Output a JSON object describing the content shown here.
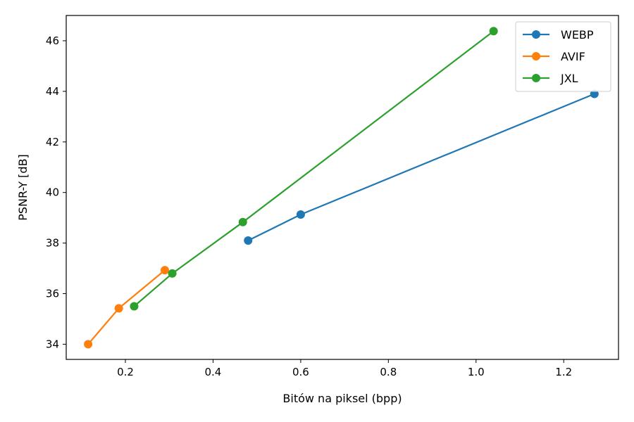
{
  "chart_data": {
    "type": "line",
    "title": "",
    "xlabel": "Bitów na piksel (bpp)",
    "ylabel": "PSNR-Y [dB]",
    "xlim": [
      0.065,
      1.325
    ],
    "ylim": [
      33.4,
      47.0
    ],
    "xticks": [
      0.2,
      0.4,
      0.6,
      0.8,
      1.0,
      1.2
    ],
    "xtick_labels": [
      "0.2",
      "0.4",
      "0.6",
      "0.8",
      "1.0",
      "1.2"
    ],
    "yticks": [
      34,
      36,
      38,
      40,
      42,
      44,
      46
    ],
    "ytick_labels": [
      "34",
      "36",
      "38",
      "40",
      "42",
      "44",
      "46"
    ],
    "grid": false,
    "legend_position": "top-right",
    "series": [
      {
        "name": "WEBP",
        "color": "#1f77b4",
        "x": [
          0.48,
          0.6,
          1.27
        ],
        "y": [
          38.1,
          39.13,
          43.9
        ]
      },
      {
        "name": "AVIF",
        "color": "#ff7f0e",
        "x": [
          0.115,
          0.185,
          0.29
        ],
        "y": [
          34.0,
          35.42,
          36.93
        ]
      },
      {
        "name": "JXL",
        "color": "#2ca02c",
        "x": [
          0.22,
          0.307,
          0.468,
          1.04
        ],
        "y": [
          35.5,
          36.8,
          38.83,
          46.38
        ]
      }
    ]
  }
}
